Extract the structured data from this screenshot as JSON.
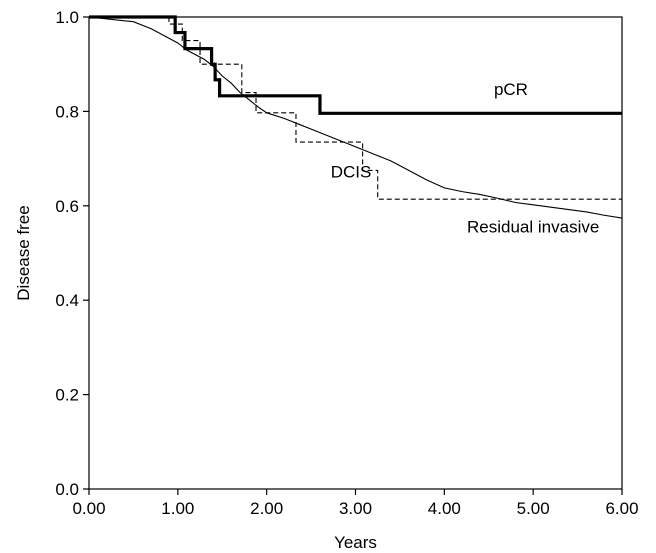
{
  "chart_data": {
    "type": "line",
    "title": "",
    "xlabel": "Years",
    "ylabel": "Disease free",
    "xlim": [
      0,
      6
    ],
    "ylim": [
      0,
      1
    ],
    "grid": false,
    "x_ticks": [
      0,
      1,
      2,
      3,
      4,
      5,
      6
    ],
    "x_tick_labels": [
      "0.00",
      "1.00",
      "2.00",
      "3.00",
      "4.00",
      "5.00",
      "6.00"
    ],
    "y_ticks": [
      0,
      0.2,
      0.4,
      0.6,
      0.8,
      1.0
    ],
    "y_tick_labels": [
      "0.0",
      "0.2",
      "0.4",
      "0.6",
      "0.8",
      "1.0"
    ],
    "series": [
      {
        "name": "pCR",
        "style": "thick-solid",
        "color": "#000000",
        "step_points": [
          [
            0,
            1.0
          ],
          [
            0.97,
            0.967
          ],
          [
            1.08,
            0.933
          ],
          [
            1.27,
            0.933
          ],
          [
            1.38,
            0.9
          ],
          [
            1.42,
            0.867
          ],
          [
            1.47,
            0.833
          ],
          [
            2.6,
            0.796
          ],
          [
            6.0,
            0.796
          ]
        ]
      },
      {
        "name": "DCIS",
        "style": "dashed",
        "color": "#000000",
        "step_points": [
          [
            0,
            1.0
          ],
          [
            0.9,
            0.985
          ],
          [
            1.05,
            0.95
          ],
          [
            1.25,
            0.9
          ],
          [
            1.48,
            0.9
          ],
          [
            1.72,
            0.84
          ],
          [
            1.88,
            0.797
          ],
          [
            2.33,
            0.735
          ],
          [
            2.88,
            0.735
          ],
          [
            3.08,
            0.675
          ],
          [
            3.25,
            0.614
          ],
          [
            6.0,
            0.614
          ]
        ]
      },
      {
        "name": "Residual invasive",
        "style": "thin-solid",
        "color": "#000000",
        "points": [
          [
            0,
            1.0
          ],
          [
            0.5,
            0.99
          ],
          [
            0.7,
            0.975
          ],
          [
            0.85,
            0.96
          ],
          [
            1.0,
            0.945
          ],
          [
            1.1,
            0.93
          ],
          [
            1.2,
            0.92
          ],
          [
            1.3,
            0.91
          ],
          [
            1.4,
            0.895
          ],
          [
            1.5,
            0.875
          ],
          [
            1.6,
            0.86
          ],
          [
            1.7,
            0.84
          ],
          [
            1.8,
            0.825
          ],
          [
            1.9,
            0.81
          ],
          [
            2.0,
            0.797
          ],
          [
            2.2,
            0.785
          ],
          [
            2.4,
            0.77
          ],
          [
            2.6,
            0.755
          ],
          [
            2.8,
            0.74
          ],
          [
            3.0,
            0.725
          ],
          [
            3.2,
            0.71
          ],
          [
            3.4,
            0.695
          ],
          [
            3.6,
            0.675
          ],
          [
            3.8,
            0.655
          ],
          [
            4.0,
            0.638
          ],
          [
            4.2,
            0.63
          ],
          [
            4.4,
            0.624
          ],
          [
            4.6,
            0.616
          ],
          [
            4.8,
            0.607
          ],
          [
            5.0,
            0.602
          ],
          [
            5.2,
            0.597
          ],
          [
            5.4,
            0.592
          ],
          [
            5.6,
            0.587
          ],
          [
            5.8,
            0.58
          ],
          [
            6.0,
            0.574
          ]
        ]
      }
    ],
    "annotations": [
      {
        "text": "pCR",
        "x": 4.75,
        "y": 0.835
      },
      {
        "text": "DCIS",
        "x": 2.95,
        "y": 0.66
      },
      {
        "text": "Residual invasive",
        "x": 5.0,
        "y": 0.543
      }
    ]
  }
}
